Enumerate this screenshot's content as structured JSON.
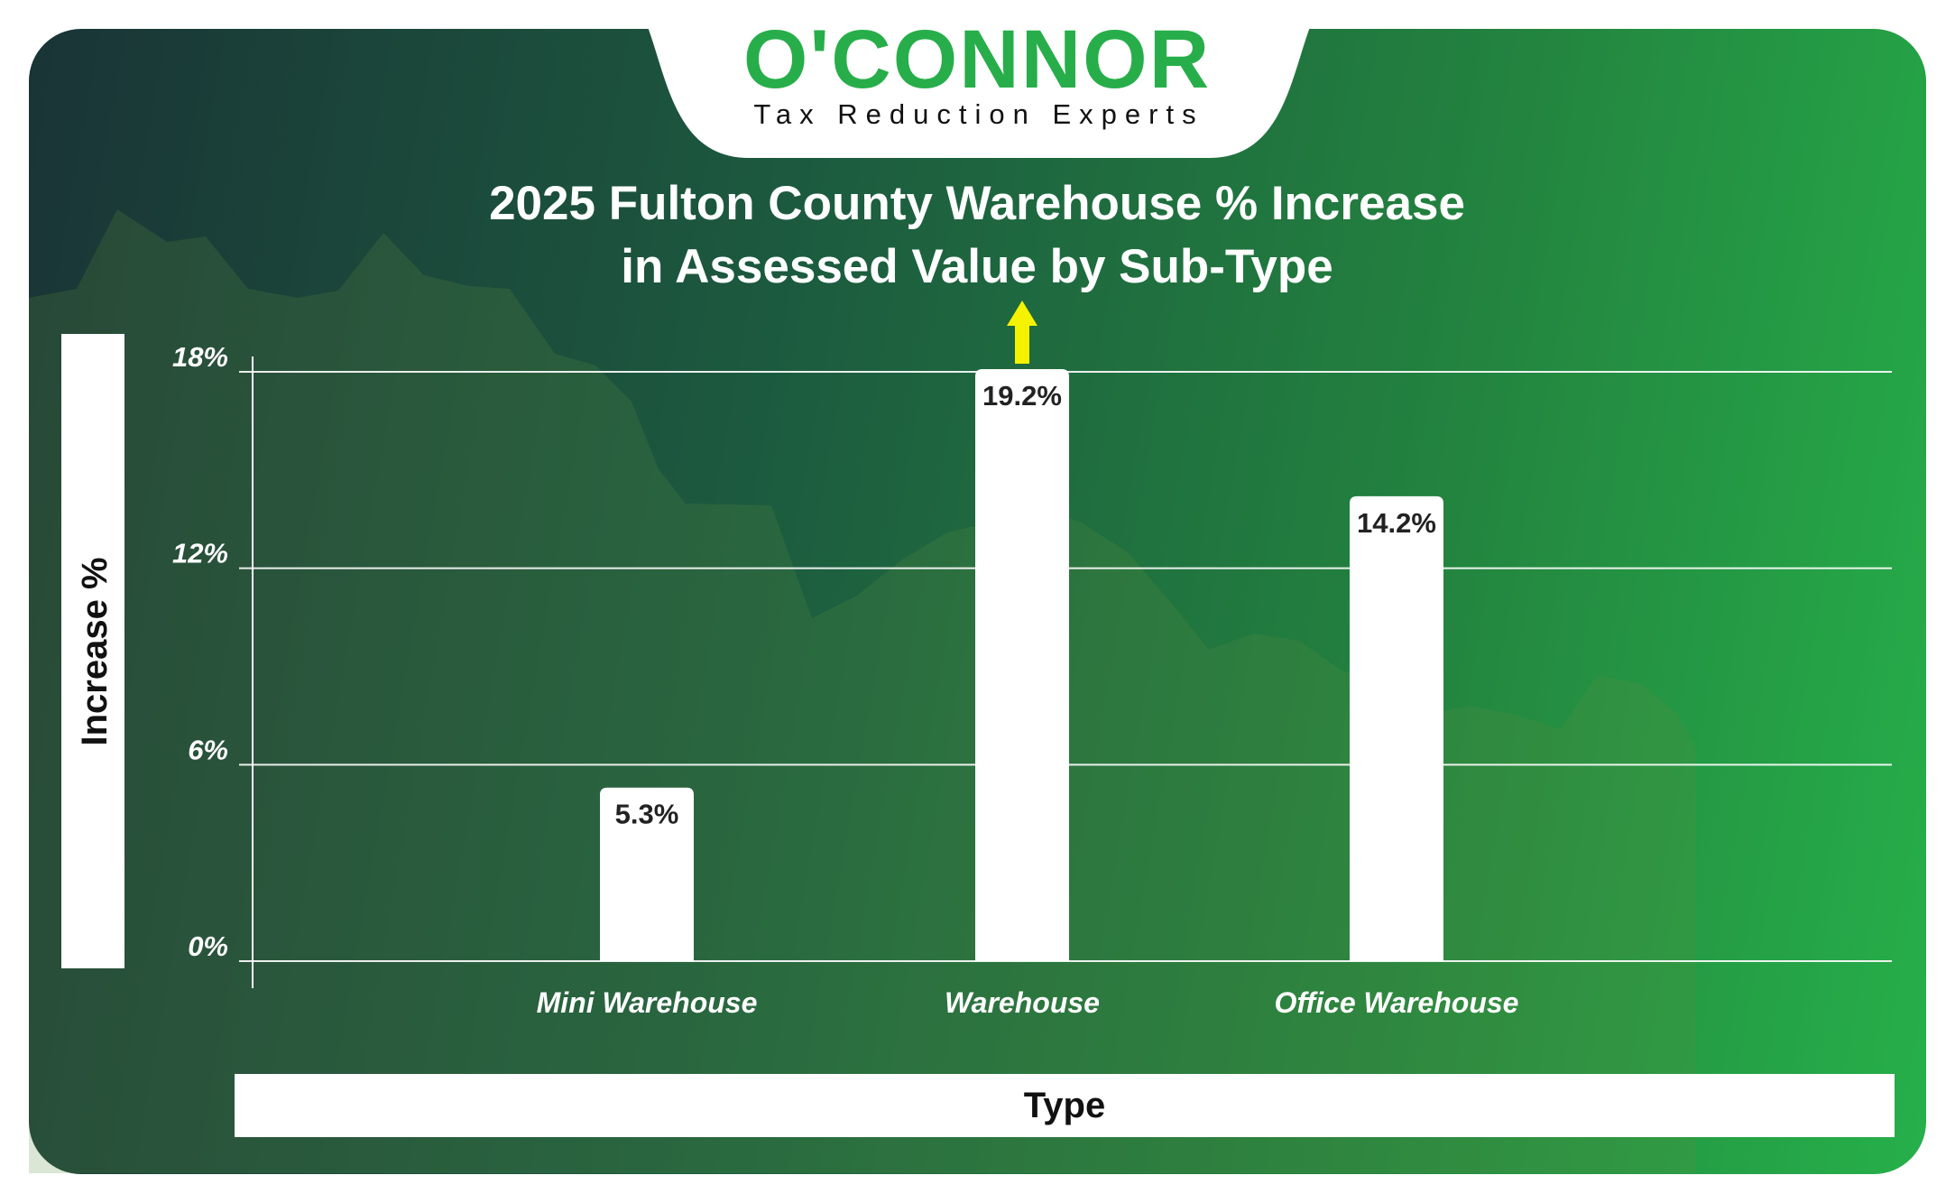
{
  "brand": {
    "name": "O'CONNOR",
    "tagline": "Tax Reduction Experts"
  },
  "colors": {
    "accent": "#27ae4a",
    "arrow": "#f5f200",
    "bar": "#ffffff"
  },
  "chart_data": {
    "type": "bar",
    "title_lines": [
      "2025 Fulton County Warehouse % Increase",
      "in Assessed Value by Sub-Type"
    ],
    "xlabel": "Type",
    "ylabel": "Increase %",
    "categories": [
      "Mini Warehouse",
      "Warehouse",
      "Office Warehouse"
    ],
    "values": [
      5.3,
      19.2,
      14.2
    ],
    "data_labels": [
      "5.3%",
      "19.2%",
      "14.2%"
    ],
    "ylim": [
      0,
      18
    ],
    "yticks": [
      {
        "value": 0,
        "label": "0%"
      },
      {
        "value": 6,
        "label": "6%"
      },
      {
        "value": 12,
        "label": "12%"
      },
      {
        "value": 18,
        "label": "18%"
      }
    ],
    "grid": true,
    "clipped_series_indicator": "up-arrow",
    "legend": "none"
  }
}
